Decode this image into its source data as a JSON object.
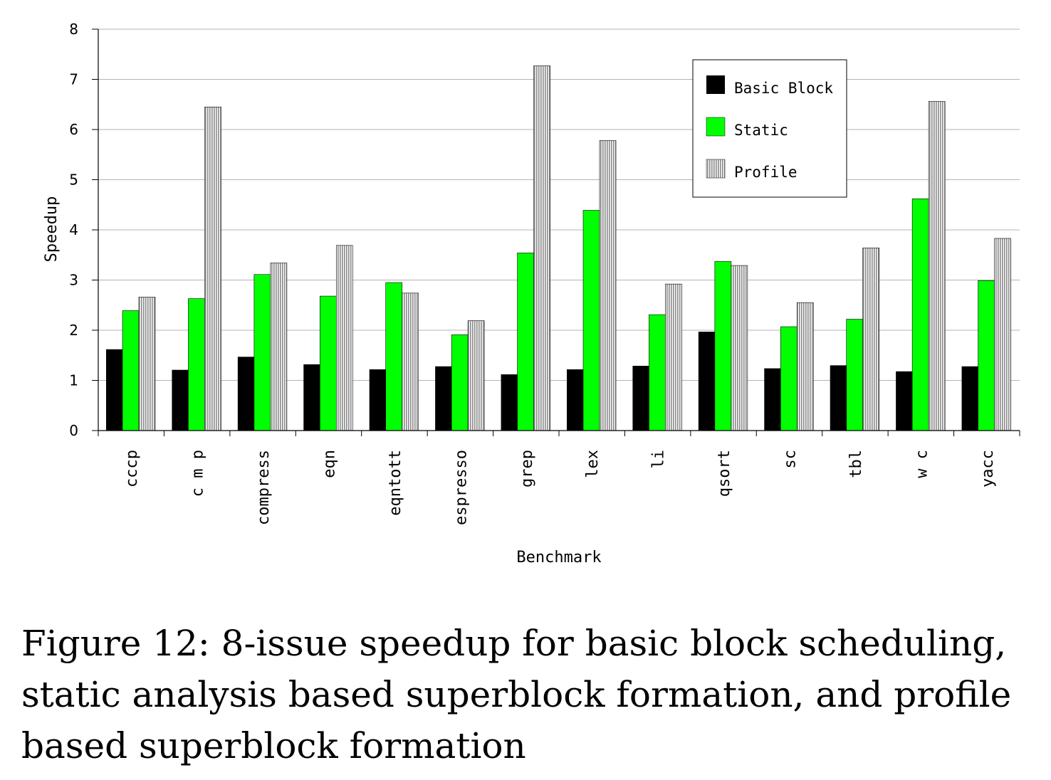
{
  "chart_data": {
    "type": "bar",
    "title": "",
    "xlabel": "Benchmark",
    "ylabel": "Speedup",
    "ylim": [
      0,
      8
    ],
    "yticks": [
      "0",
      "1",
      "2",
      "3",
      "4",
      "5",
      "6",
      "7",
      "8"
    ],
    "grid": true,
    "legend_position": "top-right",
    "categories": [
      "cccp",
      "c m p",
      "compress",
      "eqn",
      "eqntott",
      "espresso",
      "grep",
      "lex",
      "li",
      "qsort",
      "sc",
      "tbl",
      "w c",
      "yacc"
    ],
    "series": [
      {
        "name": "Basic Block",
        "color": "#000000",
        "pattern": "solid",
        "values": [
          1.62,
          1.21,
          1.47,
          1.32,
          1.22,
          1.28,
          1.12,
          1.22,
          1.29,
          1.97,
          1.24,
          1.3,
          1.18,
          1.28
        ]
      },
      {
        "name": "Static",
        "color": "#00ff00",
        "pattern": "solid",
        "values": [
          2.39,
          2.63,
          3.11,
          2.68,
          2.95,
          1.91,
          3.54,
          4.39,
          2.31,
          3.37,
          2.07,
          2.22,
          4.62,
          2.99
        ]
      },
      {
        "name": "Profile",
        "color": "#c8c8c8",
        "pattern": "hatched",
        "values": [
          2.66,
          6.45,
          3.34,
          3.69,
          2.74,
          2.19,
          7.27,
          5.78,
          2.92,
          3.29,
          2.55,
          3.64,
          6.56,
          3.83
        ]
      }
    ]
  },
  "caption": "Figure 12: 8-issue speedup for basic block scheduling, static analysis based superblock formation, and profile based superblock formation"
}
